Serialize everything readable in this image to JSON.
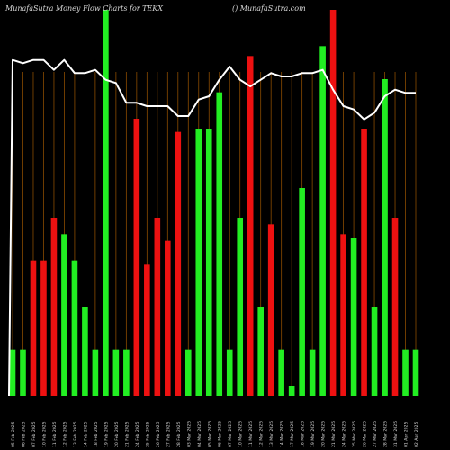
{
  "header": {
    "left": "MunafaSutra  Money Flow  Charts for TEKX",
    "right": "() MunafaSutra.com"
  },
  "colors": {
    "background": "#000000",
    "up": "#22ee22",
    "down": "#ee1111",
    "grid": "#8a4b00",
    "line": "#ffffff",
    "text": "#d8d8d8"
  },
  "chart_data": {
    "type": "bar",
    "title": "MunafaSutra  Money Flow  Charts for TEKX",
    "grid": true,
    "bars": [
      {
        "label": "05 Feb 2025",
        "value": 14,
        "direction": "up"
      },
      {
        "label": "06 Feb 2025",
        "value": 14,
        "direction": "up"
      },
      {
        "label": "07 Feb 2025",
        "value": 41,
        "direction": "down"
      },
      {
        "label": "10 Feb 2025",
        "value": 41,
        "direction": "down"
      },
      {
        "label": "11 Feb 2025",
        "value": 54,
        "direction": "down"
      },
      {
        "label": "12 Feb 2025",
        "value": 49,
        "direction": "up"
      },
      {
        "label": "13 Feb 2025",
        "value": 41,
        "direction": "up"
      },
      {
        "label": "14 Feb 2025",
        "value": 27,
        "direction": "up"
      },
      {
        "label": "18 Feb 2025",
        "value": 14,
        "direction": "up"
      },
      {
        "label": "19 Feb 2025",
        "value": 117,
        "direction": "up"
      },
      {
        "label": "20 Feb 2025",
        "value": 14,
        "direction": "up"
      },
      {
        "label": "21 Feb 2025",
        "value": 14,
        "direction": "up"
      },
      {
        "label": "24 Feb 2025",
        "value": 84,
        "direction": "down"
      },
      {
        "label": "25 Feb 2025",
        "value": 40,
        "direction": "down"
      },
      {
        "label": "26 Feb 2025",
        "value": 54,
        "direction": "down"
      },
      {
        "label": "27 Feb 2025",
        "value": 47,
        "direction": "down"
      },
      {
        "label": "28 Feb 2025",
        "value": 80,
        "direction": "down"
      },
      {
        "label": "03 Mar 2025",
        "value": 14,
        "direction": "up"
      },
      {
        "label": "04 Mar 2025",
        "value": 81,
        "direction": "up"
      },
      {
        "label": "05 Mar 2025",
        "value": 81,
        "direction": "up"
      },
      {
        "label": "06 Mar 2025",
        "value": 92,
        "direction": "up"
      },
      {
        "label": "07 Mar 2025",
        "value": 14,
        "direction": "up"
      },
      {
        "label": "10 Mar 2025",
        "value": 54,
        "direction": "up"
      },
      {
        "label": "11 Mar 2025",
        "value": 103,
        "direction": "down"
      },
      {
        "label": "12 Mar 2025",
        "value": 27,
        "direction": "up"
      },
      {
        "label": "13 Mar 2025",
        "value": 52,
        "direction": "down"
      },
      {
        "label": "14 Mar 2025",
        "value": 14,
        "direction": "up"
      },
      {
        "label": "17 Mar 2025",
        "value": 3,
        "direction": "up"
      },
      {
        "label": "18 Mar 2025",
        "value": 63,
        "direction": "up"
      },
      {
        "label": "19 Mar 2025",
        "value": 14,
        "direction": "up"
      },
      {
        "label": "20 Mar 2025",
        "value": 106,
        "direction": "up"
      },
      {
        "label": "21 Mar 2025",
        "value": 117,
        "direction": "down"
      },
      {
        "label": "24 Mar 2025",
        "value": 49,
        "direction": "down"
      },
      {
        "label": "25 Mar 2025",
        "value": 48,
        "direction": "up"
      },
      {
        "label": "26 Mar 2025",
        "value": 81,
        "direction": "down"
      },
      {
        "label": "27 Mar 2025",
        "value": 27,
        "direction": "up"
      },
      {
        "label": "28 Mar 2025",
        "value": 96,
        "direction": "up"
      },
      {
        "label": "31 Mar 2025",
        "value": 54,
        "direction": "down"
      },
      {
        "label": "01 Apr 2025",
        "value": 14,
        "direction": "up"
      },
      {
        "label": "02 Apr 2025",
        "value": 14,
        "direction": "up"
      }
    ],
    "line": {
      "values": [
        80,
        79,
        80,
        80,
        77,
        80,
        76,
        76,
        77,
        74,
        73,
        67,
        67,
        66,
        66,
        66,
        63,
        63,
        68,
        69,
        74,
        78,
        74,
        72,
        74,
        76,
        75,
        75,
        76,
        76,
        77,
        71,
        66,
        65,
        62,
        64,
        69,
        71,
        70,
        70
      ]
    },
    "ylim": [
      0,
      120
    ]
  }
}
